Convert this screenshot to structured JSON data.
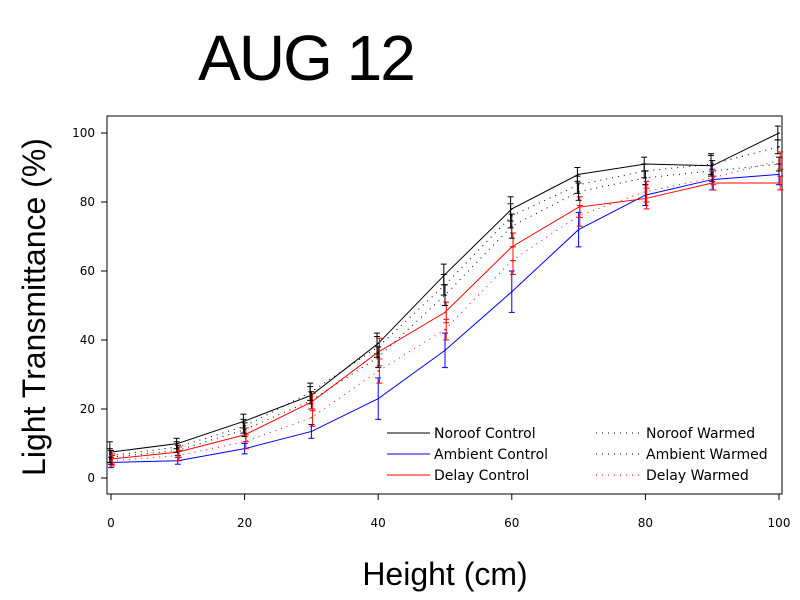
{
  "chart_data": {
    "type": "line",
    "title": "AUG 12",
    "xlabel": "Height (cm)",
    "ylabel": "Light Transmittance (%)",
    "xlim": [
      0,
      100
    ],
    "ylim": [
      -5,
      105
    ],
    "xticks": [
      0,
      20,
      40,
      60,
      80,
      100
    ],
    "yticks": [
      0,
      20,
      40,
      60,
      80,
      100
    ],
    "grid": false,
    "legend_position": "bottom-right",
    "x": [
      0,
      10,
      20,
      30,
      40,
      50,
      60,
      70,
      80,
      90,
      100
    ],
    "series": [
      {
        "name": "Noroof Control",
        "color": "#000000",
        "style": "solid",
        "values": [
          7.5,
          10,
          16.5,
          24,
          39,
          59,
          78,
          88,
          91,
          90.5,
          100
        ],
        "errors": [
          3,
          1.5,
          2,
          2.5,
          3,
          3,
          3.5,
          2,
          2,
          3,
          2
        ]
      },
      {
        "name": "Ambient Control",
        "color": "#0000ff",
        "style": "solid",
        "values": [
          4.5,
          5,
          8.5,
          13.5,
          23,
          37,
          54,
          72,
          82,
          86.5,
          88
        ],
        "errors": [
          1.5,
          1,
          1.5,
          2,
          6,
          5,
          6,
          5,
          3,
          3,
          3
        ]
      },
      {
        "name": "Delay Control",
        "color": "#ff0000",
        "style": "solid",
        "values": [
          5.5,
          7.5,
          12.5,
          22,
          36.5,
          48,
          67,
          78.5,
          81,
          85.5,
          85.5
        ],
        "errors": [
          1.5,
          1.5,
          2,
          2.5,
          4,
          3,
          4,
          3,
          3,
          2,
          2
        ]
      },
      {
        "name": "Noroof Warmed",
        "color": "#000000",
        "style": "dotted",
        "values": [
          6.5,
          9,
          15,
          25,
          38,
          56,
          76,
          85,
          89,
          91,
          96
        ],
        "errors": [
          2,
          1.5,
          2,
          2.5,
          3,
          3,
          3.5,
          2.5,
          2,
          3,
          2
        ]
      },
      {
        "name": "Ambient Warmed",
        "color": "#000000",
        "style": "dotted",
        "values": [
          6,
          8,
          14,
          22.5,
          35,
          53,
          73,
          83,
          87,
          89,
          91
        ],
        "errors": [
          2,
          1.5,
          2,
          2.5,
          3,
          3,
          3.5,
          2.5,
          2,
          3,
          2
        ]
      },
      {
        "name": "Delay Warmed",
        "color": "#ff0000",
        "style": "dotted",
        "values": [
          5,
          6.5,
          10.5,
          17.5,
          31,
          43,
          63,
          76,
          83,
          87,
          92
        ],
        "errors": [
          1.5,
          1.5,
          2,
          2.5,
          3.5,
          3,
          4,
          3,
          3,
          2,
          2.5
        ]
      }
    ]
  }
}
